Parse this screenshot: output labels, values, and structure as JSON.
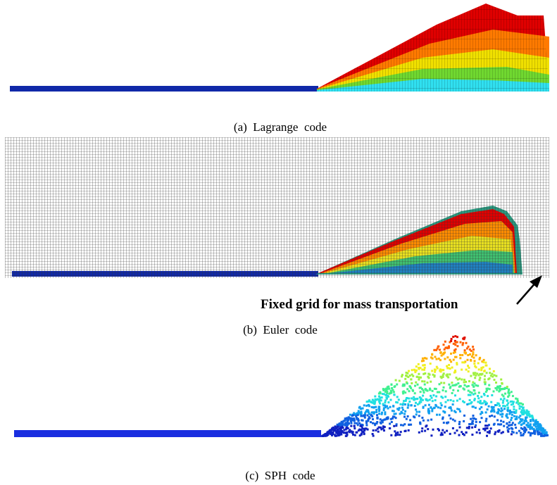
{
  "panels": [
    {
      "caption": "(a)  Lagrange  code"
    },
    {
      "caption": "(b)  Euler  code",
      "annotation": "Fixed grid for mass transportation"
    },
    {
      "caption": "(c)  SPH  code"
    }
  ]
}
